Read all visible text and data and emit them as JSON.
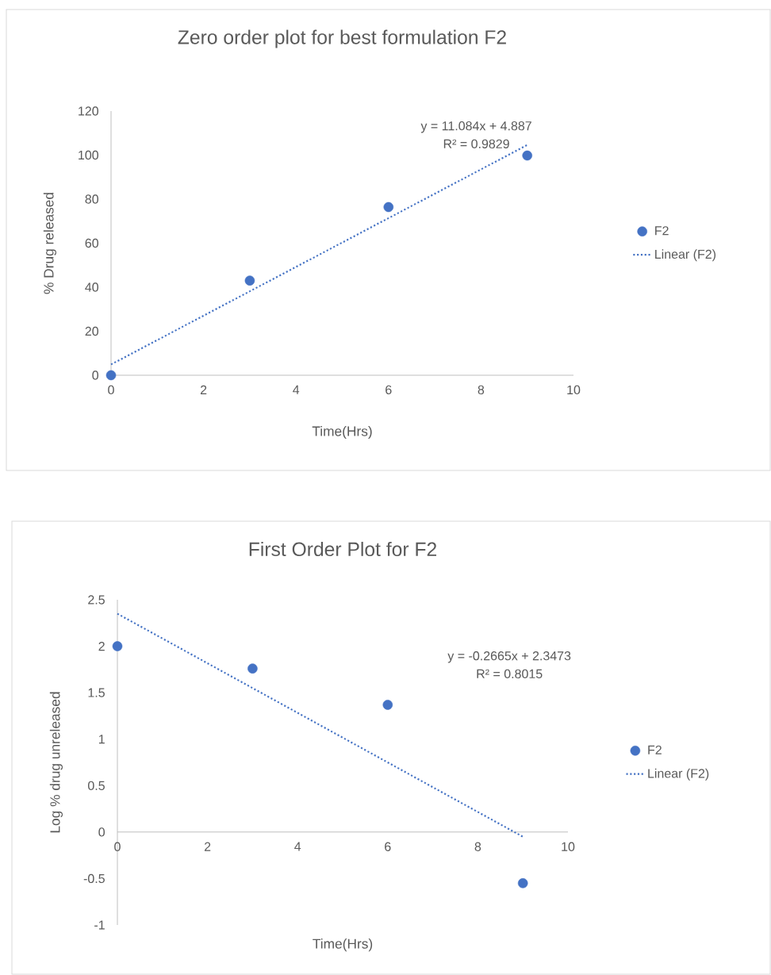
{
  "chart_data": [
    {
      "type": "scatter",
      "title": "Zero order plot for best formulation F2",
      "xlabel": "Time(Hrs)",
      "ylabel": "% Drug released",
      "annotations": [
        "y = 11.084x + 4.887",
        "R² = 0.9829"
      ],
      "xlim": [
        0,
        10
      ],
      "ylim": [
        0,
        120
      ],
      "xticks": [
        0,
        2,
        4,
        6,
        8,
        10
      ],
      "yticks": [
        0,
        20,
        40,
        60,
        80,
        100,
        120
      ],
      "legend": "right",
      "series": [
        {
          "name": "F2",
          "marker": "circle",
          "color": "#4472c4",
          "x": [
            0,
            3,
            6,
            9
          ],
          "values": [
            0,
            43,
            76.4,
            99.8
          ]
        },
        {
          "name": "Linear (F2)",
          "type": "line",
          "line_style": "dotted",
          "color": "#4472c4",
          "x": [
            0,
            9
          ],
          "values": [
            4.9,
            104.6
          ]
        }
      ]
    },
    {
      "type": "scatter",
      "title": "First Order Plot for F2",
      "xlabel": "Time(Hrs)",
      "ylabel": "Log % drug unreleased",
      "annotations": [
        "y = -0.2665x + 2.3473",
        "R² = 0.8015"
      ],
      "xlim": [
        0,
        10
      ],
      "ylim": [
        -1,
        2.5
      ],
      "xticks": [
        0,
        2,
        4,
        6,
        8,
        10
      ],
      "yticks": [
        -1,
        -0.5,
        0,
        0.5,
        1,
        1.5,
        2,
        2.5
      ],
      "legend": "right",
      "series": [
        {
          "name": "F2",
          "marker": "circle",
          "color": "#4472c4",
          "x": [
            0,
            3,
            6,
            9
          ],
          "values": [
            2.0,
            1.76,
            1.37,
            -0.55
          ]
        },
        {
          "name": "Linear (F2)",
          "type": "line",
          "line_style": "dotted",
          "color": "#4472c4",
          "x": [
            0,
            9
          ],
          "values": [
            2.35,
            -0.05
          ]
        }
      ]
    }
  ]
}
